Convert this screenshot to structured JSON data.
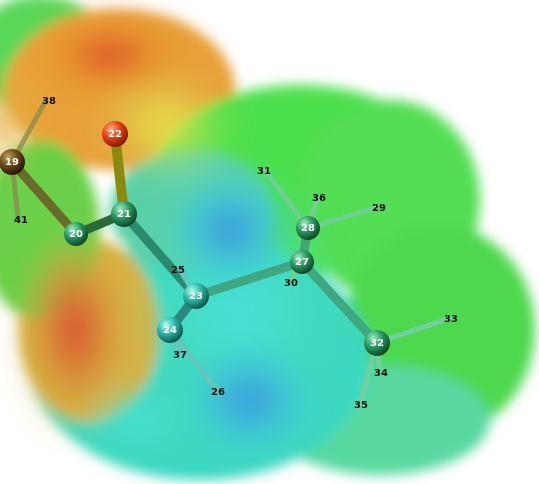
{
  "viewer": {
    "background_color": "#ffffff",
    "surface_colors": {
      "negative": "#d8322a",
      "mid": "#3fe03f",
      "positive": "#3a8ee0"
    },
    "bond_color": "#3a9a72"
  },
  "atoms": [
    {
      "id": "19",
      "label": "19",
      "color": "#6a4a1a"
    },
    {
      "id": "20",
      "label": "20",
      "color": "#1d7a4a"
    },
    {
      "id": "21",
      "label": "21",
      "color": "#1f7a56"
    },
    {
      "id": "22",
      "label": "22",
      "color": "#e84010"
    },
    {
      "id": "23",
      "label": "23",
      "color": "#2ab8a8"
    },
    {
      "id": "24",
      "label": "24",
      "color": "#2a9a80"
    },
    {
      "id": "27",
      "label": "27",
      "color": "#2a9a5a"
    },
    {
      "id": "28",
      "label": "28",
      "color": "#3aa860"
    },
    {
      "id": "32",
      "label": "32",
      "color": "#2a9a70"
    },
    {
      "id": "38",
      "label": "38"
    },
    {
      "id": "41",
      "label": "41"
    },
    {
      "id": "25",
      "label": "25"
    },
    {
      "id": "37",
      "label": "37"
    },
    {
      "id": "26",
      "label": "26"
    },
    {
      "id": "31",
      "label": "31"
    },
    {
      "id": "36",
      "label": "36"
    },
    {
      "id": "29",
      "label": "29"
    },
    {
      "id": "30",
      "label": "30"
    },
    {
      "id": "33",
      "label": "33"
    },
    {
      "id": "34",
      "label": "34"
    },
    {
      "id": "35",
      "label": "35"
    }
  ]
}
